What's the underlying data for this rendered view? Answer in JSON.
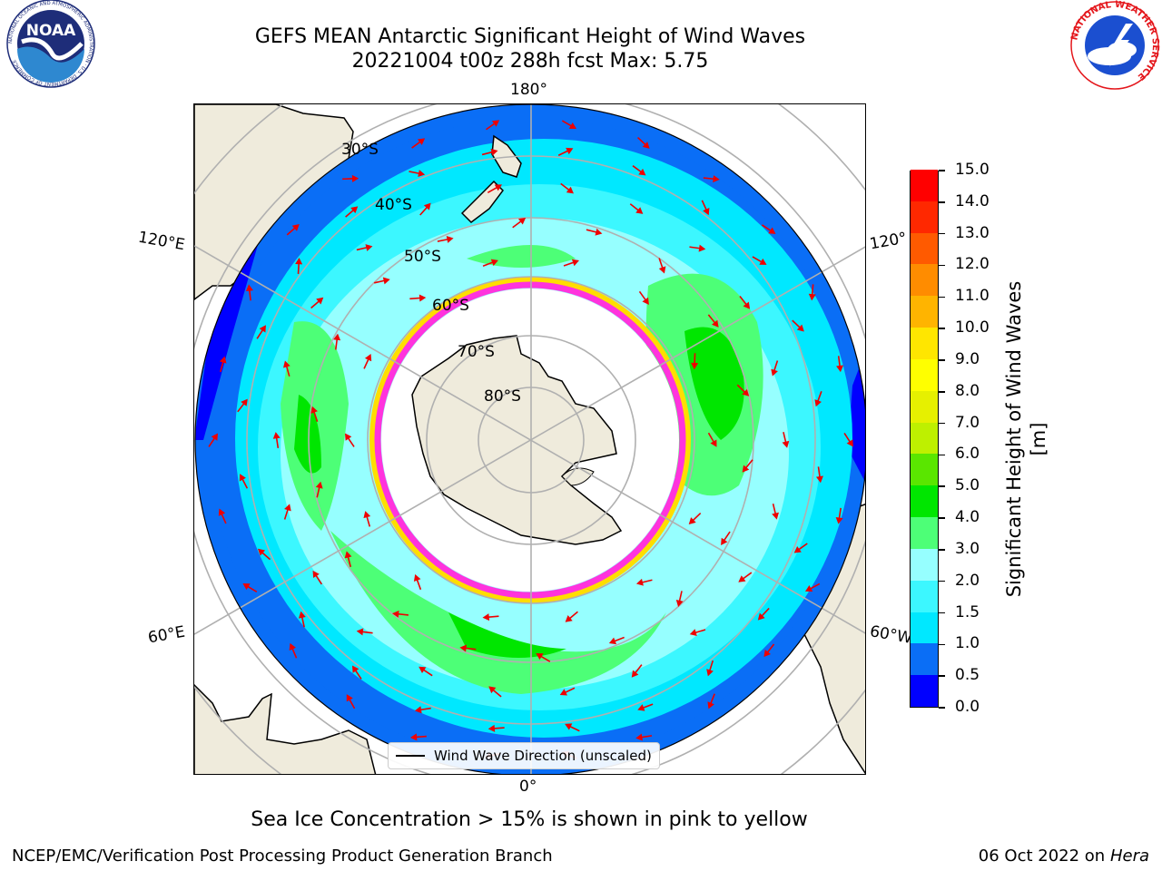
{
  "title": {
    "line1": "GEFS MEAN Antarctic Significant Height of Wind Waves",
    "line2": "20221004 t00z 288h fcst   Max: 5.75"
  },
  "logos": {
    "left": {
      "text": "NOAA",
      "ring_text": "NATIONAL OCEANIC AND ATMOSPHERIC ADMINISTRATION · U.S. DEPARTMENT OF COMMERCE",
      "colors": [
        "#1e2d79",
        "#2e88d0",
        "#ffffff"
      ]
    },
    "right": {
      "ring_text": "NATIONAL WEATHER SERVICE",
      "colors": [
        "#e4171c",
        "#1b4fd0",
        "#ffffff"
      ]
    }
  },
  "map": {
    "longitude_labels": {
      "top": "180°",
      "bottom": "0°",
      "upper_left": "120°E",
      "upper_right": "120°",
      "lower_left": "60°E",
      "lower_right": "60°W"
    },
    "latitude_labels": [
      "30°S",
      "40°S",
      "50°S",
      "60°S",
      "70°S",
      "80°S"
    ],
    "colors": {
      "land": "#efebdc",
      "ice_edge_pink": "#ff33dd",
      "ice_edge_yellow": "#ffdd00",
      "arrow": "#ee0000",
      "gridline": "#b0b0b0"
    }
  },
  "colorbar": {
    "title": "Significant Height of Wind Waves [m]",
    "ticks": [
      "0.0",
      "0.5",
      "1.0",
      "1.5",
      "2.0",
      "3.0",
      "4.0",
      "5.0",
      "6.0",
      "7.0",
      "8.0",
      "9.0",
      "10.0",
      "11.0",
      "12.0",
      "13.0",
      "14.0",
      "15.0"
    ],
    "colors": [
      "#0000ff",
      "#0a6ef6",
      "#00e8ff",
      "#3cf7ff",
      "#96ffff",
      "#4dff77",
      "#00e600",
      "#5ae600",
      "#bef000",
      "#e6f000",
      "#ffff00",
      "#ffe600",
      "#ffb400",
      "#ff8c00",
      "#ff5a00",
      "#ff2800",
      "#ff0000"
    ]
  },
  "legend": {
    "label": "Wind Wave Direction (unscaled)"
  },
  "footer": {
    "ice_note": "Sea Ice Concentration > 15% is shown in pink to yellow",
    "credit": "NCEP/EMC/Verification Post Processing Product Generation Branch",
    "date": "06 Oct 2022 on",
    "machine": "Hera"
  }
}
